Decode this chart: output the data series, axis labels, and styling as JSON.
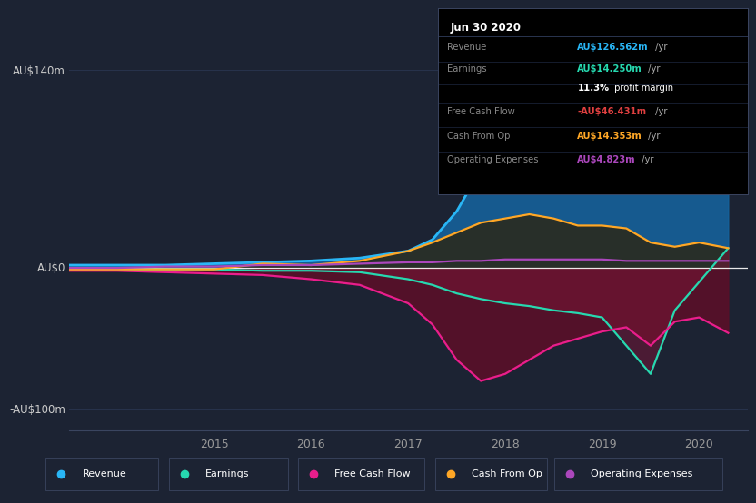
{
  "bg_color": "#1c2333",
  "plot_bg_color": "#1c2333",
  "grid_color": "#2a3550",
  "axis_label_color": "#cccccc",
  "tick_label_color": "#999999",
  "ylabel_140": "AU$140m",
  "ylabel_0": "AU$0",
  "ylabel_neg100": "-AU$100m",
  "years": [
    2013.5,
    2014.0,
    2014.5,
    2015.0,
    2015.5,
    2016.0,
    2016.5,
    2017.0,
    2017.25,
    2017.5,
    2017.75,
    2018.0,
    2018.25,
    2018.5,
    2018.75,
    2019.0,
    2019.25,
    2019.5,
    2019.75,
    2020.0,
    2020.3
  ],
  "revenue": [
    2,
    2,
    2,
    3,
    4,
    5,
    7,
    12,
    20,
    40,
    70,
    105,
    125,
    140,
    138,
    130,
    115,
    92,
    100,
    112,
    126
  ],
  "earnings": [
    -1,
    -1,
    -1,
    -1,
    -2,
    -2,
    -3,
    -8,
    -12,
    -18,
    -22,
    -25,
    -27,
    -30,
    -32,
    -35,
    -55,
    -75,
    -30,
    -10,
    14
  ],
  "free_cash_flow": [
    -2,
    -2,
    -3,
    -4,
    -5,
    -8,
    -12,
    -25,
    -40,
    -65,
    -80,
    -75,
    -65,
    -55,
    -50,
    -45,
    -42,
    -55,
    -38,
    -35,
    -46
  ],
  "cash_from_op": [
    -1,
    -1,
    -1,
    -1,
    3,
    2,
    5,
    12,
    18,
    25,
    32,
    35,
    38,
    35,
    30,
    30,
    28,
    18,
    15,
    18,
    14
  ],
  "operating_expenses": [
    0,
    0,
    1,
    1,
    2,
    2,
    3,
    4,
    4,
    5,
    5,
    6,
    6,
    6,
    6,
    6,
    5,
    5,
    5,
    5,
    5
  ],
  "revenue_color": "#29b6f6",
  "revenue_fill": "#1565a0",
  "earnings_color": "#26d9b0",
  "earnings_fill": "#7a1535",
  "free_cash_flow_color": "#e91e8c",
  "free_cash_flow_fill": "#5a0f28",
  "cash_from_op_color": "#ffa726",
  "cash_from_op_fill": "#2d2510",
  "operating_expenses_color": "#ab47bc",
  "operating_expenses_fill": "#2a1040",
  "legend_items": [
    "Revenue",
    "Earnings",
    "Free Cash Flow",
    "Cash From Op",
    "Operating Expenses"
  ],
  "legend_colors": [
    "#29b6f6",
    "#26d9b0",
    "#e91e8c",
    "#ffa726",
    "#ab47bc"
  ],
  "info_box_title": "Jun 30 2020",
  "info_rows": [
    {
      "label": "Revenue",
      "value": "AU$126.562m",
      "suffix": " /yr",
      "value_color": "#29b6f6",
      "label_color": "#888888"
    },
    {
      "label": "Earnings",
      "value": "AU$14.250m",
      "suffix": " /yr",
      "value_color": "#26d9b0",
      "label_color": "#888888"
    },
    {
      "label": "",
      "value": "11.3%",
      "suffix": " profit margin",
      "value_color": "#ffffff",
      "label_color": "#888888",
      "suffix_color": "#ffffff"
    },
    {
      "label": "Free Cash Flow",
      "value": "-AU$46.431m",
      "suffix": " /yr",
      "value_color": "#e04040",
      "label_color": "#888888"
    },
    {
      "label": "Cash From Op",
      "value": "AU$14.353m",
      "suffix": " /yr",
      "value_color": "#ffa726",
      "label_color": "#888888"
    },
    {
      "label": "Operating Expenses",
      "value": "AU$4.823m",
      "suffix": " /yr",
      "value_color": "#ab47bc",
      "label_color": "#888888"
    }
  ],
  "x_ticks": [
    2015,
    2016,
    2017,
    2018,
    2019,
    2020
  ],
  "ylim": [
    -115,
    155
  ],
  "xlim": [
    2013.5,
    2020.5
  ]
}
